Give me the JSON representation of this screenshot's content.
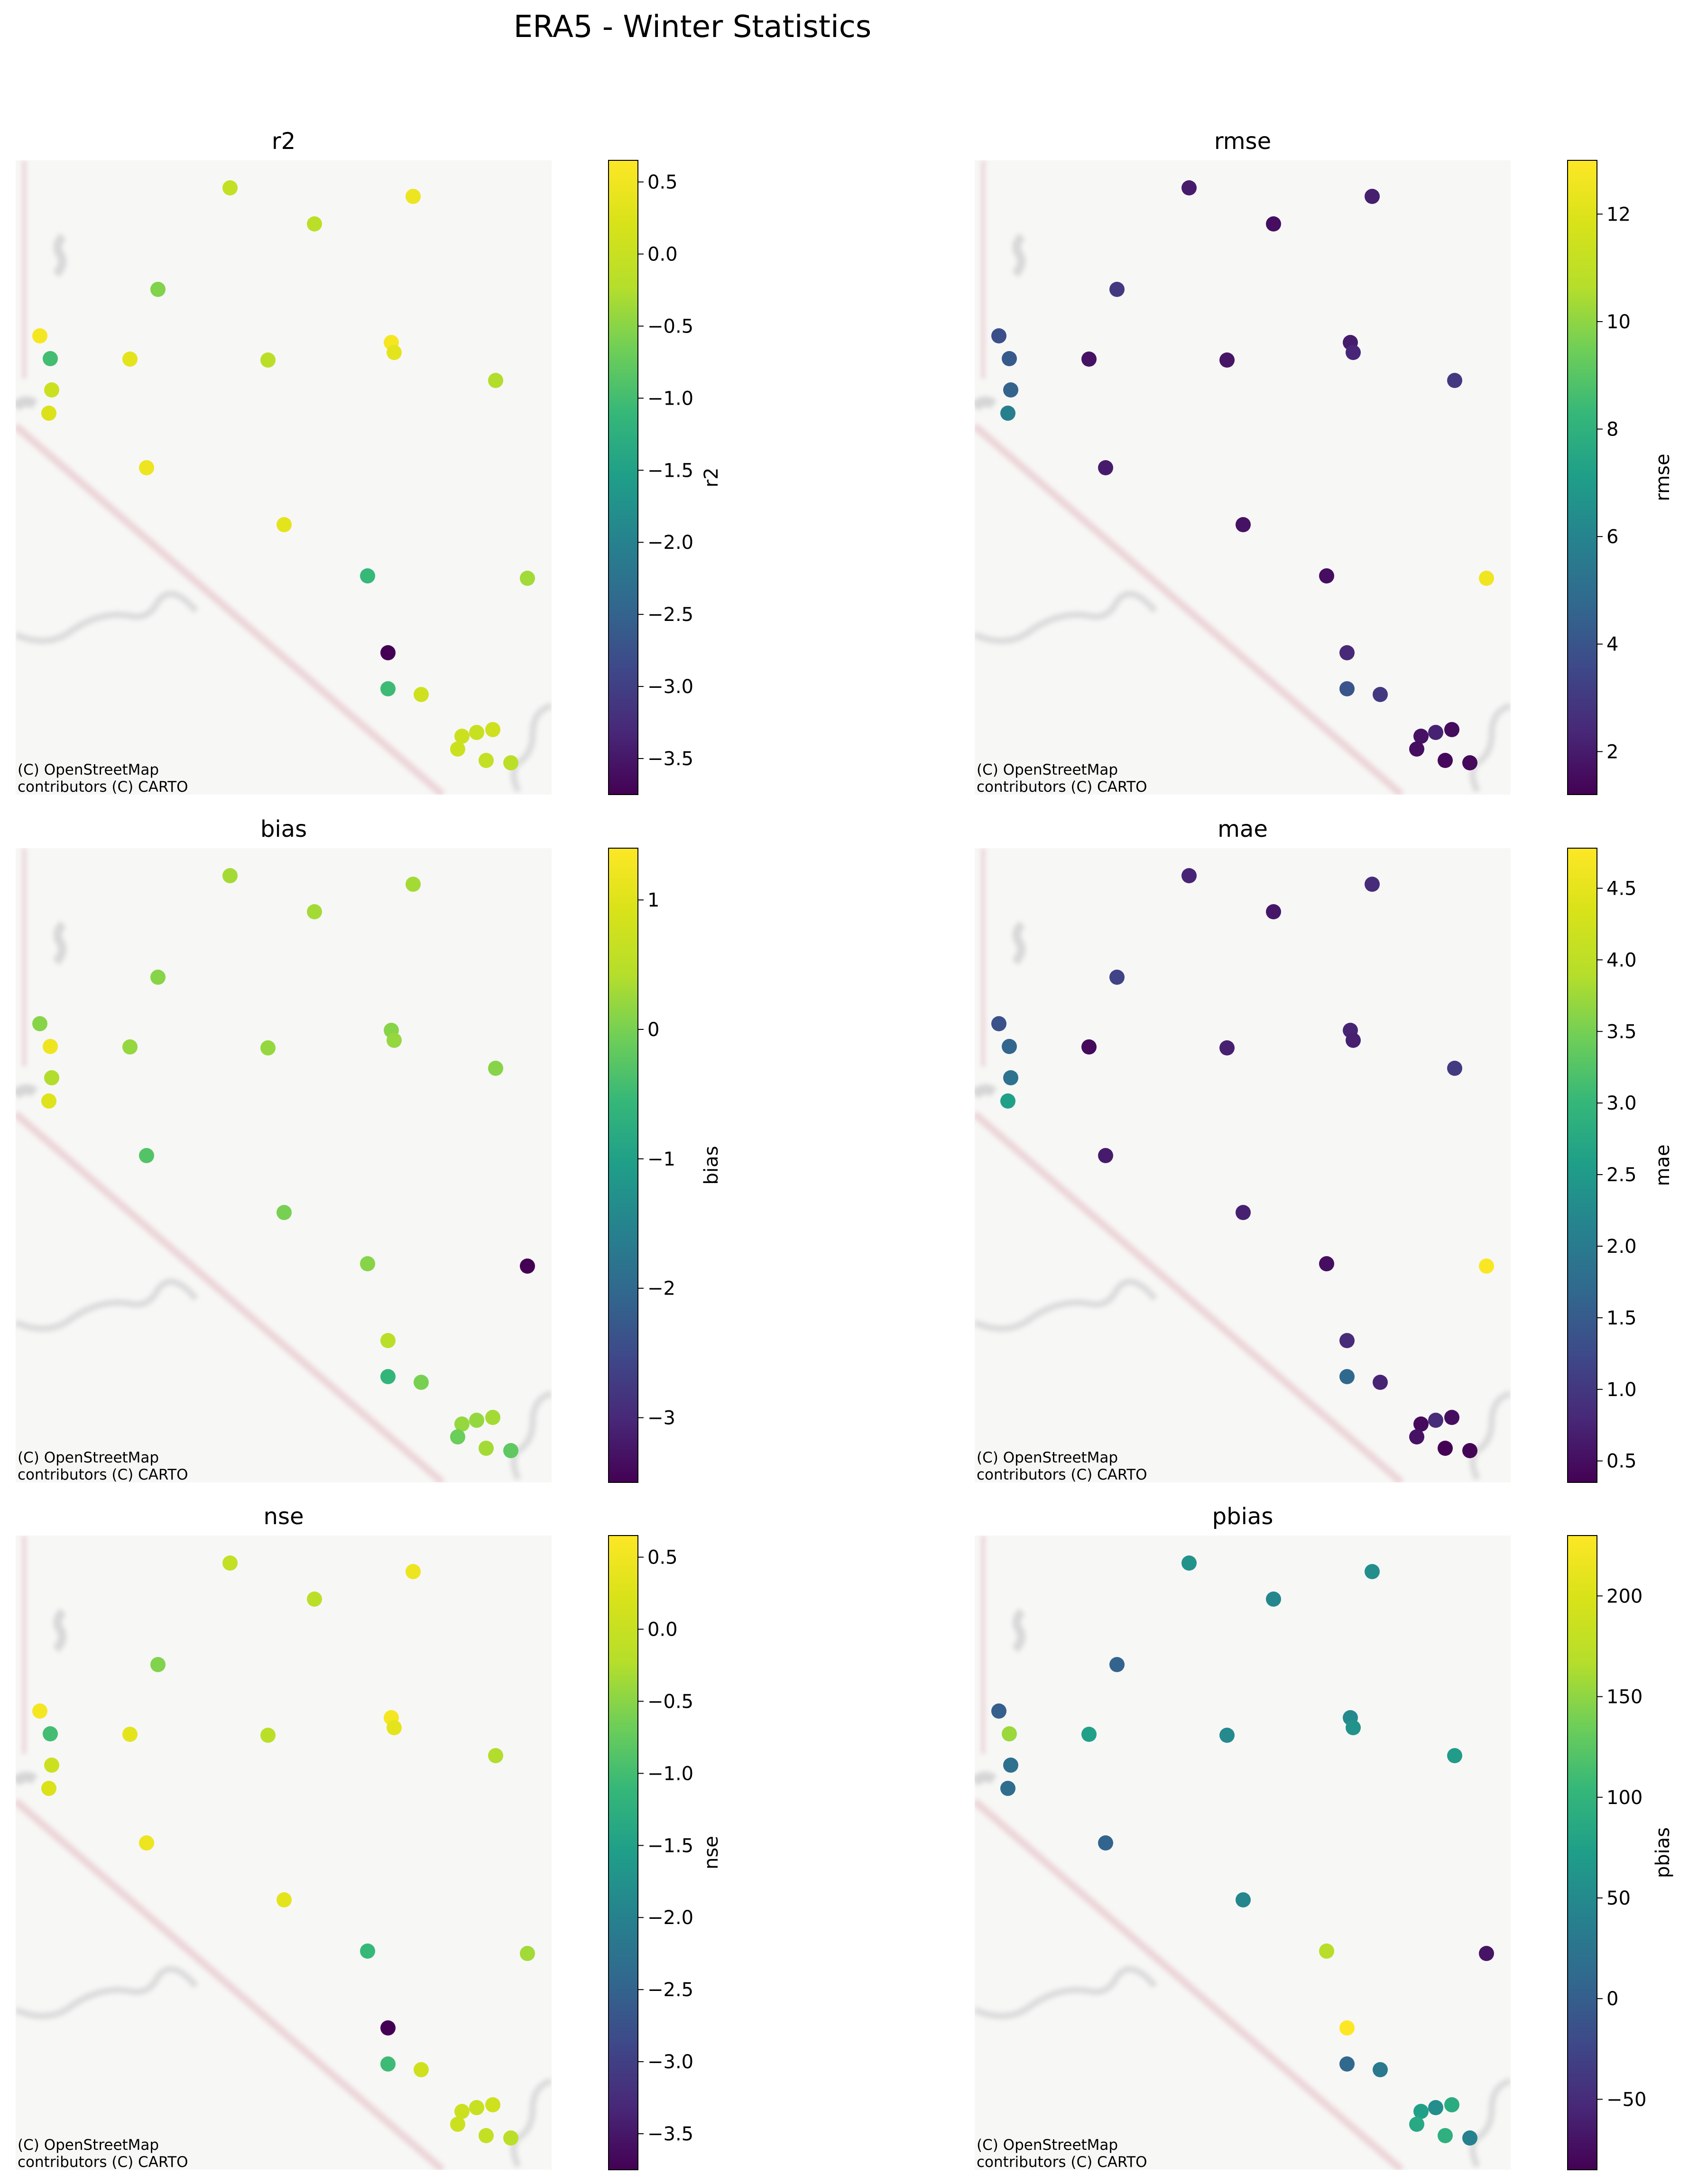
{
  "title": "ERA5 - Winter Statistics",
  "credit_line1": "(C) OpenStreetMap",
  "credit_line2": "contributors (C) CARTO",
  "chart_data": [
    {
      "type": "scatter",
      "title": "r2",
      "colorbar_label": "r2",
      "colormap": "viridis",
      "range": [
        -3.75,
        0.65
      ],
      "ticks": [
        0.5,
        0.0,
        -0.5,
        -1.0,
        -1.5,
        -2.0,
        -2.5,
        -3.0,
        -3.5
      ],
      "tick_labels": [
        "0.5",
        "0.0",
        "−0.5",
        "−1.0",
        "−1.5",
        "−2.0",
        "−2.5",
        "−3.0",
        "−3.5"
      ],
      "show_colorbar_label": true,
      "values": [
        -0.05,
        0.45,
        -0.15,
        -0.55,
        0.55,
        -1.0,
        0.35,
        -0.15,
        0.55,
        0.35,
        0.05,
        0.25,
        -0.25,
        0.45,
        0.35,
        -1.1,
        -0.35,
        -3.75,
        -1.05,
        0.1,
        0.0,
        0.05,
        0.1,
        -0.05,
        0.05,
        -0.15
      ]
    },
    {
      "type": "scatter",
      "title": "rmse",
      "colorbar_label": "rmse",
      "colormap": "viridis",
      "range": [
        1.2,
        13.0
      ],
      "ticks": [
        12,
        10,
        8,
        6,
        4,
        2
      ],
      "tick_labels": [
        "12",
        "10",
        "8",
        "6",
        "4",
        "2"
      ],
      "show_colorbar_label": true,
      "values": [
        2.0,
        2.1,
        1.6,
        3.0,
        3.8,
        4.2,
        1.7,
        1.8,
        2.0,
        2.3,
        4.6,
        5.8,
        3.0,
        2.0,
        1.7,
        1.6,
        12.6,
        2.4,
        4.0,
        3.0,
        2.2,
        1.7,
        1.5,
        1.4,
        1.6,
        1.4
      ]
    },
    {
      "type": "scatter",
      "title": "bias",
      "colorbar_label": "bias",
      "colormap": "viridis",
      "range": [
        -3.5,
        1.4
      ],
      "ticks": [
        1,
        0,
        -1,
        -2,
        -3
      ],
      "tick_labels": [
        "1",
        "0",
        "−1",
        "−2",
        "−3"
      ],
      "show_colorbar_label": true,
      "values": [
        0.3,
        0.3,
        0.3,
        0.1,
        0.1,
        1.2,
        0.2,
        0.2,
        0.1,
        0.2,
        0.4,
        1.0,
        0.1,
        -0.3,
        0.0,
        0.1,
        -3.5,
        0.5,
        -0.6,
        0.0,
        0.2,
        0.2,
        0.3,
        0.3,
        -0.1,
        -0.2
      ]
    },
    {
      "type": "scatter",
      "title": "mae",
      "colorbar_label": "mae",
      "colormap": "viridis",
      "range": [
        0.35,
        4.78
      ],
      "ticks": [
        4.5,
        4.0,
        3.5,
        3.0,
        2.5,
        2.0,
        1.5,
        1.0,
        0.5
      ],
      "tick_labels": [
        "4.5",
        "4.0",
        "3.5",
        "3.0",
        "2.5",
        "2.0",
        "1.5",
        "1.0",
        "0.5"
      ],
      "show_colorbar_label": true,
      "values": [
        0.75,
        0.85,
        0.6,
        1.15,
        1.35,
        1.65,
        0.45,
        0.7,
        0.75,
        0.7,
        1.85,
        2.6,
        1.05,
        0.65,
        0.7,
        0.5,
        4.75,
        0.85,
        1.7,
        0.75,
        0.85,
        0.45,
        0.5,
        0.35,
        0.55,
        0.4
      ]
    },
    {
      "type": "scatter",
      "title": "nse",
      "colorbar_label": "nse",
      "colormap": "viridis",
      "range": [
        -3.75,
        0.65
      ],
      "ticks": [
        0.5,
        0.0,
        -0.5,
        -1.0,
        -1.5,
        -2.0,
        -2.5,
        -3.0,
        -3.5
      ],
      "tick_labels": [
        "0.5",
        "0.0",
        "−0.5",
        "−1.0",
        "−1.5",
        "−2.0",
        "−2.5",
        "−3.0",
        "−3.5"
      ],
      "show_colorbar_label": true,
      "values": [
        -0.05,
        0.45,
        -0.15,
        -0.55,
        0.55,
        -1.0,
        0.35,
        -0.15,
        0.55,
        0.35,
        0.05,
        0.25,
        -0.25,
        0.45,
        0.35,
        -1.1,
        -0.35,
        -3.75,
        -1.05,
        0.1,
        0.0,
        0.05,
        0.1,
        -0.05,
        0.05,
        -0.15
      ]
    },
    {
      "type": "scatter",
      "title": "pbias",
      "colorbar_label": "pbias",
      "colormap": "viridis",
      "range": [
        -85,
        230
      ],
      "ticks": [
        200,
        150,
        100,
        50,
        0,
        -50
      ],
      "tick_labels": [
        "200",
        "150",
        "100",
        "50",
        "0",
        "−50"
      ],
      "show_colorbar_label": true,
      "values": [
        60,
        55,
        45,
        5,
        0,
        155,
        75,
        50,
        50,
        60,
        20,
        15,
        70,
        5,
        45,
        170,
        -70,
        230,
        10,
        30,
        55,
        75,
        90,
        95,
        85,
        40
      ]
    }
  ]
}
